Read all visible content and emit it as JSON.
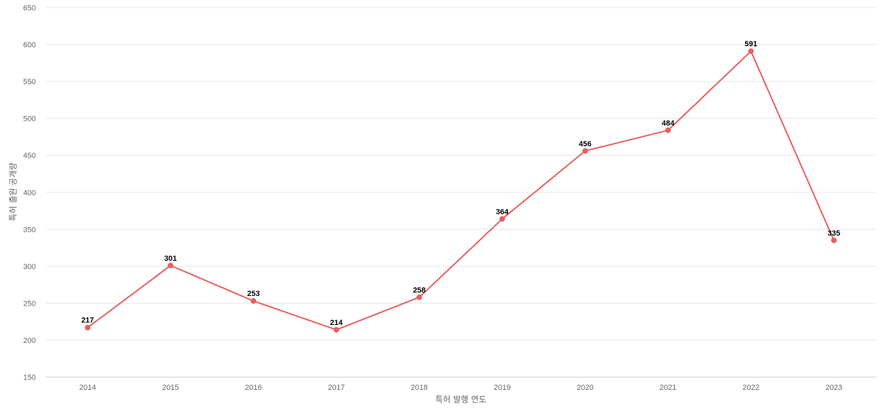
{
  "chart_data": {
    "type": "line",
    "categories": [
      "2014",
      "2015",
      "2016",
      "2017",
      "2018",
      "2019",
      "2020",
      "2021",
      "2022",
      "2023"
    ],
    "values": [
      217,
      301,
      253,
      214,
      258,
      364,
      456,
      484,
      591,
      335
    ],
    "xlabel": "특허 발행 연도",
    "ylabel": "특허 출원 공개량",
    "ylim": [
      150,
      650
    ],
    "yticks": [
      150,
      200,
      250,
      300,
      350,
      400,
      450,
      500,
      550,
      600,
      650
    ],
    "grid": true,
    "data_labels": true,
    "line_color": "#ec5c5c",
    "marker": "circle"
  }
}
